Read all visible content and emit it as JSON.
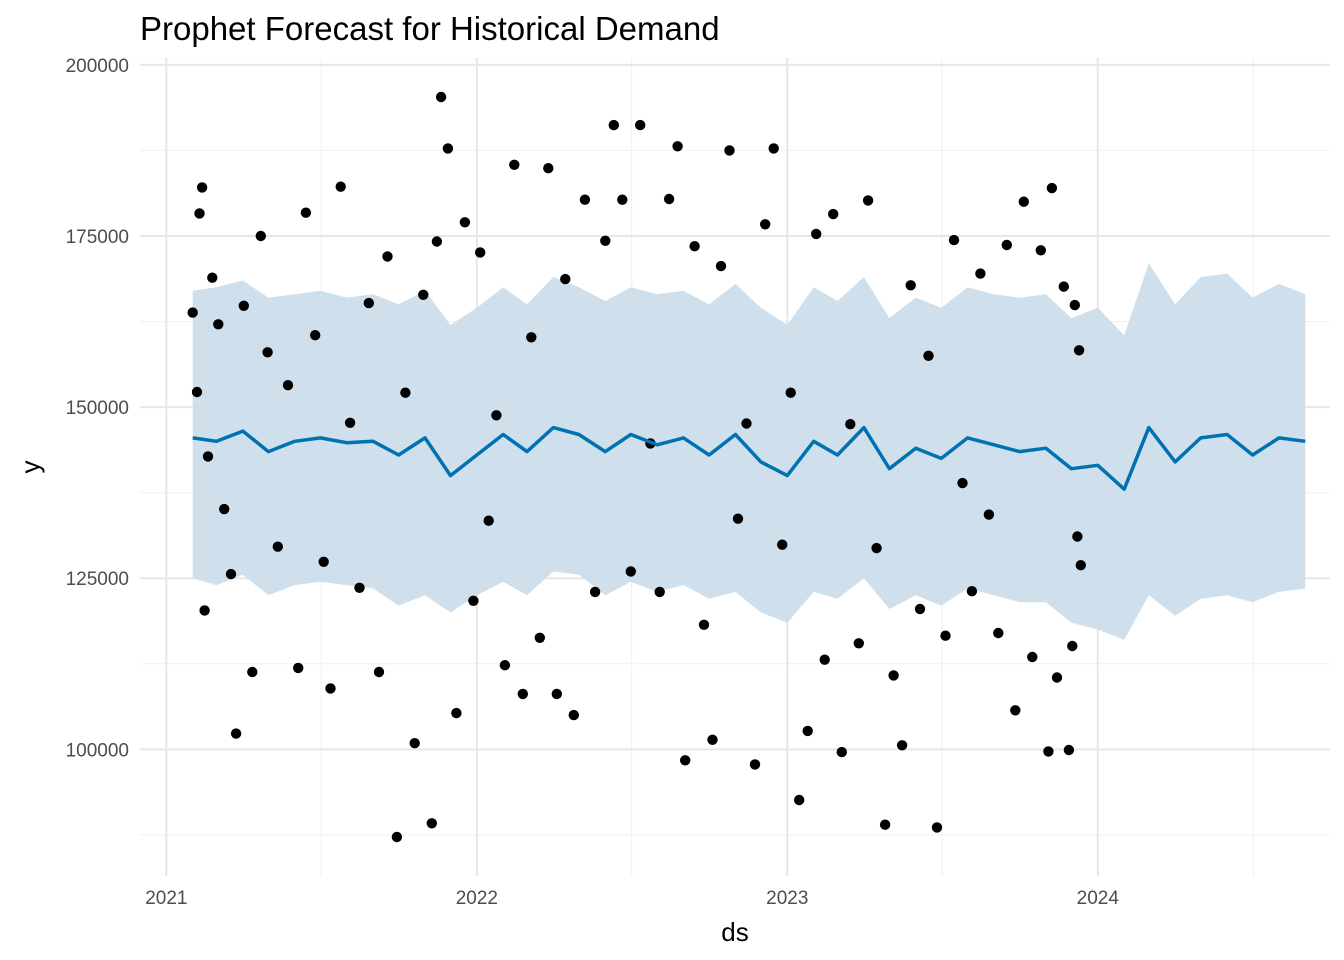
{
  "chart_data": {
    "type": "scatter",
    "title": "Prophet Forecast for Historical Demand",
    "xlabel": "ds",
    "ylabel": "y",
    "x_ticks": [
      "2021",
      "2022",
      "2023",
      "2024"
    ],
    "x_range": [
      "2020-12-01",
      "2024-09-30"
    ],
    "y_ticks": [
      "100000",
      "125000",
      "150000",
      "175000",
      "200000"
    ],
    "ylim": [
      81500,
      201000
    ],
    "grid": true,
    "legend": "none",
    "colors": {
      "points": "#000000",
      "forecast_line": "#0072B2",
      "uncertainty_band": "#CADDEA",
      "grid_major": "#E6E6E6",
      "grid_minor": "#F2F2F2"
    },
    "series": [
      {
        "kind": "observed",
        "points": [
          [
            "2021-02-01",
            163800
          ],
          [
            "2021-02-06",
            152200
          ],
          [
            "2021-02-09",
            178300
          ],
          [
            "2021-02-12",
            182100
          ],
          [
            "2021-02-15",
            120300
          ],
          [
            "2021-02-19",
            142800
          ],
          [
            "2021-02-24",
            168900
          ],
          [
            "2021-03-03",
            162100
          ],
          [
            "2021-03-10",
            135100
          ],
          [
            "2021-03-18",
            125600
          ],
          [
            "2021-03-24",
            102300
          ],
          [
            "2021-04-02",
            164800
          ],
          [
            "2021-04-12",
            111300
          ],
          [
            "2021-04-22",
            175000
          ],
          [
            "2021-04-30",
            158000
          ],
          [
            "2021-05-12",
            129600
          ],
          [
            "2021-05-24",
            153200
          ],
          [
            "2021-06-05",
            111900
          ],
          [
            "2021-06-14",
            178400
          ],
          [
            "2021-06-25",
            160500
          ],
          [
            "2021-07-05",
            127400
          ],
          [
            "2021-07-13",
            108900
          ],
          [
            "2021-07-25",
            182200
          ],
          [
            "2021-08-05",
            147700
          ],
          [
            "2021-08-16",
            123600
          ],
          [
            "2021-08-27",
            165200
          ],
          [
            "2021-09-08",
            111300
          ],
          [
            "2021-09-18",
            172000
          ],
          [
            "2021-09-29",
            87200
          ],
          [
            "2021-10-09",
            152100
          ],
          [
            "2021-10-20",
            100900
          ],
          [
            "2021-10-30",
            166400
          ],
          [
            "2021-11-09",
            89200
          ],
          [
            "2021-11-15",
            174200
          ],
          [
            "2021-11-20",
            195300
          ],
          [
            "2021-11-28",
            187800
          ],
          [
            "2021-12-08",
            105300
          ],
          [
            "2021-12-18",
            177000
          ],
          [
            "2021-12-28",
            121700
          ],
          [
            "2022-01-05",
            172600
          ],
          [
            "2022-01-15",
            133400
          ],
          [
            "2022-01-24",
            148800
          ],
          [
            "2022-02-03",
            112300
          ],
          [
            "2022-02-14",
            185400
          ],
          [
            "2022-02-24",
            108100
          ],
          [
            "2022-03-06",
            160200
          ],
          [
            "2022-03-16",
            116300
          ],
          [
            "2022-03-26",
            184900
          ],
          [
            "2022-04-05",
            108100
          ],
          [
            "2022-04-15",
            168700
          ],
          [
            "2022-04-25",
            105000
          ],
          [
            "2022-05-08",
            180300
          ],
          [
            "2022-05-20",
            123000
          ],
          [
            "2022-06-01",
            174300
          ],
          [
            "2022-06-11",
            191200
          ],
          [
            "2022-06-21",
            180300
          ],
          [
            "2022-07-01",
            126000
          ],
          [
            "2022-07-12",
            191200
          ],
          [
            "2022-07-24",
            144700
          ],
          [
            "2022-08-04",
            123000
          ],
          [
            "2022-08-15",
            180400
          ],
          [
            "2022-08-25",
            188100
          ],
          [
            "2022-09-03",
            98400
          ],
          [
            "2022-09-14",
            173500
          ],
          [
            "2022-09-25",
            118200
          ],
          [
            "2022-10-05",
            101400
          ],
          [
            "2022-10-15",
            170600
          ],
          [
            "2022-10-25",
            187500
          ],
          [
            "2022-11-04",
            133700
          ],
          [
            "2022-11-14",
            147600
          ],
          [
            "2022-11-24",
            97800
          ],
          [
            "2022-12-06",
            176700
          ],
          [
            "2022-12-16",
            187800
          ],
          [
            "2022-12-26",
            129900
          ],
          [
            "2023-01-05",
            152100
          ],
          [
            "2023-01-15",
            92600
          ],
          [
            "2023-01-25",
            102700
          ],
          [
            "2023-02-04",
            175300
          ],
          [
            "2023-02-14",
            113100
          ],
          [
            "2023-02-24",
            178200
          ],
          [
            "2023-03-06",
            99600
          ],
          [
            "2023-03-16",
            147500
          ],
          [
            "2023-03-26",
            115500
          ],
          [
            "2023-04-06",
            180200
          ],
          [
            "2023-04-16",
            129400
          ],
          [
            "2023-04-26",
            89000
          ],
          [
            "2023-05-06",
            110800
          ],
          [
            "2023-05-16",
            100600
          ],
          [
            "2023-05-26",
            167800
          ],
          [
            "2023-06-06",
            120500
          ],
          [
            "2023-06-16",
            157500
          ],
          [
            "2023-06-26",
            88600
          ],
          [
            "2023-07-06",
            116600
          ],
          [
            "2023-07-16",
            174400
          ],
          [
            "2023-07-26",
            138900
          ],
          [
            "2023-08-06",
            123100
          ],
          [
            "2023-08-16",
            169500
          ],
          [
            "2023-08-26",
            134300
          ],
          [
            "2023-09-06",
            117000
          ],
          [
            "2023-09-16",
            173700
          ],
          [
            "2023-09-26",
            105700
          ],
          [
            "2023-10-06",
            180000
          ],
          [
            "2023-10-16",
            113500
          ],
          [
            "2023-10-26",
            172900
          ],
          [
            "2023-11-04",
            99700
          ],
          [
            "2023-11-08",
            182000
          ],
          [
            "2023-11-14",
            110500
          ],
          [
            "2023-11-22",
            167600
          ],
          [
            "2023-11-28",
            99900
          ],
          [
            "2023-12-02",
            115100
          ],
          [
            "2023-12-05",
            164900
          ],
          [
            "2023-12-08",
            131100
          ],
          [
            "2023-12-10",
            158300
          ],
          [
            "2023-12-12",
            126900
          ]
        ]
      },
      {
        "kind": "forecast",
        "x": [
          "2021-02-01",
          "2021-03-01",
          "2021-04-01",
          "2021-05-01",
          "2021-06-01",
          "2021-07-01",
          "2021-08-01",
          "2021-09-01",
          "2021-10-01",
          "2021-11-01",
          "2021-12-01",
          "2022-01-01",
          "2022-02-01",
          "2022-03-01",
          "2022-04-01",
          "2022-05-01",
          "2022-06-01",
          "2022-07-01",
          "2022-08-01",
          "2022-09-01",
          "2022-10-01",
          "2022-11-01",
          "2022-12-01",
          "2023-01-01",
          "2023-02-01",
          "2023-03-01",
          "2023-04-01",
          "2023-05-01",
          "2023-06-01",
          "2023-07-01",
          "2023-08-01",
          "2023-09-01",
          "2023-10-01",
          "2023-11-01",
          "2023-12-01",
          "2024-01-01",
          "2024-02-01",
          "2024-03-01",
          "2024-04-01",
          "2024-05-01",
          "2024-06-01",
          "2024-07-01",
          "2024-08-01",
          "2024-09-01"
        ],
        "yhat": [
          145500,
          145000,
          146500,
          143500,
          145000,
          145500,
          144800,
          145000,
          143000,
          145500,
          140000,
          143000,
          146000,
          143500,
          147000,
          146000,
          143500,
          146000,
          144500,
          145500,
          143000,
          146000,
          142000,
          140000,
          145000,
          143000,
          147000,
          141000,
          144000,
          142500,
          145500,
          144500,
          143500,
          144000,
          141000,
          141500,
          138000,
          147000,
          142000,
          145500,
          146000,
          143000,
          145500,
          145000
        ],
        "yhat_lower": [
          125000,
          124000,
          125500,
          122500,
          124000,
          124500,
          124000,
          123500,
          121000,
          122500,
          120000,
          122500,
          124500,
          122500,
          126000,
          125500,
          122500,
          124500,
          123000,
          124000,
          122000,
          123000,
          120000,
          118500,
          123000,
          122000,
          125000,
          120500,
          122500,
          121000,
          123500,
          122500,
          121500,
          121500,
          118500,
          117500,
          116000,
          122500,
          119500,
          122000,
          122500,
          121500,
          123000,
          123500
        ],
        "yhat_upper": [
          167000,
          167500,
          168500,
          166000,
          166500,
          167000,
          166000,
          166500,
          165000,
          167000,
          162000,
          164500,
          167500,
          165000,
          169000,
          167500,
          165500,
          167500,
          166500,
          167000,
          165000,
          168000,
          164500,
          162000,
          167500,
          165500,
          169000,
          163000,
          166000,
          164500,
          167500,
          166500,
          166000,
          166500,
          163000,
          164500,
          160500,
          171000,
          165000,
          169000,
          169500,
          166000,
          168000,
          166500
        ]
      }
    ]
  }
}
